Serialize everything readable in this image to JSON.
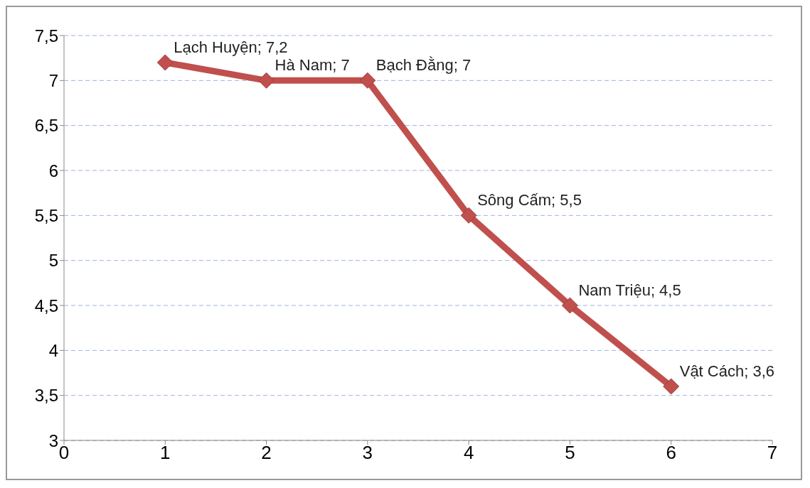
{
  "chart_data": {
    "type": "line",
    "x": [
      1,
      2,
      3,
      4,
      5,
      6
    ],
    "series": [
      {
        "color": "#c0504d",
        "values": [
          7.2,
          7,
          7,
          5.5,
          4.5,
          3.6
        ],
        "value_labels": [
          "Lạch Huyện; 7,2",
          "Hà Nam; 7",
          "Bạch Đằng; 7",
          "Sông Cấm; 5,5",
          "Nam Triệu; 4,5",
          "Vật Cách; 3,6"
        ]
      }
    ],
    "xlim": [
      0,
      7
    ],
    "xticks": [
      0,
      1,
      2,
      3,
      4,
      5,
      6,
      7
    ],
    "ylim": [
      3,
      7.5
    ],
    "yticks": [
      3,
      {
        "value": 3.5,
        "label": "3,5"
      },
      4,
      {
        "value": 4.5,
        "label": "4,5"
      },
      5,
      {
        "value": 5.5,
        "label": "5,5"
      },
      6,
      {
        "value": 6.5,
        "label": "6,5"
      },
      7,
      {
        "value": 7.5,
        "label": "7,5"
      }
    ],
    "grid": "y",
    "marker": "diamond",
    "line_style": "solid",
    "legend": false
  }
}
